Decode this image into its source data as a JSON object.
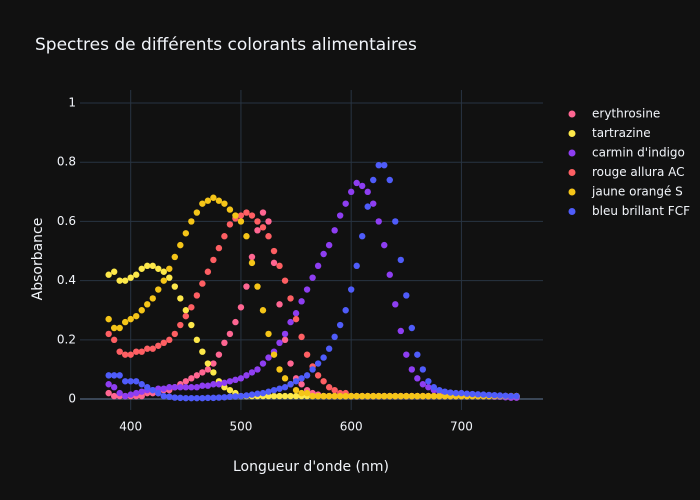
{
  "chart_data": {
    "type": "scatter",
    "title": "Spectres de différents colorants alimentaires",
    "x_label": "Longueur d'onde (nm)",
    "y_label": "Absorbance",
    "xlim": [
      354,
      774
    ],
    "ylim": [
      -0.037,
      1.044
    ],
    "xticks": [
      400,
      500,
      600,
      700
    ],
    "yticks": [
      0,
      0.2,
      0.4,
      0.6,
      0.8,
      1
    ],
    "grid": true,
    "x": [
      380,
      385,
      390,
      395,
      400,
      405,
      410,
      415,
      420,
      425,
      430,
      435,
      440,
      445,
      450,
      455,
      460,
      465,
      470,
      475,
      480,
      485,
      490,
      495,
      500,
      505,
      510,
      515,
      520,
      525,
      530,
      535,
      540,
      545,
      550,
      555,
      560,
      565,
      570,
      575,
      580,
      585,
      590,
      595,
      600,
      605,
      610,
      615,
      620,
      625,
      630,
      635,
      640,
      645,
      650,
      655,
      660,
      665,
      670,
      675,
      680,
      685,
      690,
      695,
      700,
      705,
      710,
      715,
      720,
      725,
      730,
      735,
      740,
      745,
      750
    ],
    "series": [
      {
        "name": "erythrosine",
        "color": "#ff6692",
        "values": [
          0.02,
          0.01,
          0.01,
          0.01,
          0.01,
          0.01,
          0.01,
          0.02,
          0.02,
          0.02,
          0.03,
          0.03,
          0.04,
          0.05,
          0.06,
          0.07,
          0.08,
          0.09,
          0.1,
          0.12,
          0.15,
          0.19,
          0.22,
          0.26,
          0.31,
          0.38,
          0.48,
          0.57,
          0.63,
          0.6,
          0.46,
          0.32,
          0.2,
          0.12,
          0.07,
          0.05,
          0.03,
          0.02,
          0.015,
          0.01,
          0.01,
          0.01,
          0.01,
          0.01,
          0.01,
          0.01,
          0.01,
          0.01,
          0.01,
          0.01,
          0.01,
          0.01,
          0.01,
          0.01,
          0.01,
          0.01,
          0.01,
          0.01,
          0.01,
          0.01,
          0.01,
          0.01,
          0.01,
          0.01,
          0.01,
          0.01,
          0.01,
          0.01,
          0.01,
          0.01,
          0.01,
          0.01,
          0.01,
          0.005,
          0.005
        ]
      },
      {
        "name": "tartrazine",
        "color": "#fde84a",
        "values": [
          0.42,
          0.43,
          0.4,
          0.4,
          0.41,
          0.42,
          0.44,
          0.45,
          0.45,
          0.44,
          0.43,
          0.41,
          0.38,
          0.34,
          0.3,
          0.25,
          0.2,
          0.16,
          0.12,
          0.09,
          0.06,
          0.04,
          0.03,
          0.02,
          0.01,
          0.01,
          0.01,
          0.01,
          0.01,
          0.01,
          0.01,
          0.01,
          0.01,
          0.01,
          0.01,
          0.01,
          0.01,
          0.01,
          0.01,
          0.01,
          0.01,
          0.01,
          0.01,
          0.01,
          0.01,
          0.01,
          0.01,
          0.01,
          0.01,
          0.01,
          0.01,
          0.01,
          0.01,
          0.01,
          0.01,
          0.01,
          0.01,
          0.01,
          0.01,
          0.01,
          0.01,
          0.01,
          0.01,
          0.01,
          0.01,
          0.01,
          0.01,
          0.01,
          0.01,
          0.01,
          0.01,
          0.01,
          0.01,
          0.01,
          0.01
        ]
      },
      {
        "name": "carmin d'indigo",
        "color": "#8e3ef2",
        "values": [
          0.05,
          0.04,
          0.02,
          0.01,
          0.015,
          0.02,
          0.025,
          0.03,
          0.03,
          0.035,
          0.035,
          0.04,
          0.04,
          0.04,
          0.04,
          0.04,
          0.04,
          0.045,
          0.045,
          0.05,
          0.05,
          0.055,
          0.06,
          0.065,
          0.07,
          0.08,
          0.09,
          0.1,
          0.12,
          0.14,
          0.16,
          0.19,
          0.22,
          0.26,
          0.29,
          0.33,
          0.37,
          0.41,
          0.45,
          0.49,
          0.52,
          0.57,
          0.62,
          0.66,
          0.7,
          0.73,
          0.72,
          0.7,
          0.66,
          0.6,
          0.52,
          0.42,
          0.32,
          0.23,
          0.15,
          0.1,
          0.07,
          0.05,
          0.04,
          0.03,
          0.025,
          0.02,
          0.02,
          0.018,
          0.015,
          0.014,
          0.013,
          0.012,
          0.01,
          0.01,
          0.008,
          0.008,
          0.006,
          0.005,
          0.005
        ]
      },
      {
        "name": "rouge allura AC",
        "color": "#fe5f63",
        "values": [
          0.22,
          0.2,
          0.16,
          0.15,
          0.15,
          0.16,
          0.16,
          0.17,
          0.17,
          0.18,
          0.19,
          0.2,
          0.22,
          0.25,
          0.28,
          0.31,
          0.35,
          0.39,
          0.43,
          0.47,
          0.51,
          0.55,
          0.59,
          0.61,
          0.62,
          0.63,
          0.62,
          0.6,
          0.58,
          0.55,
          0.5,
          0.45,
          0.4,
          0.34,
          0.27,
          0.21,
          0.15,
          0.11,
          0.08,
          0.06,
          0.04,
          0.03,
          0.02,
          0.02,
          0.01,
          0.01,
          0.01,
          0.01,
          0.01,
          0.01,
          0.01,
          0.01,
          0.01,
          0.01,
          0.01,
          0.01,
          0.01,
          0.01,
          0.01,
          0.01,
          0.01,
          0.01,
          0.01,
          0.01,
          0.01,
          0.01,
          0.01,
          0.01,
          0.01,
          0.01,
          0.01,
          0.01,
          0.01,
          0.01,
          0.01
        ]
      },
      {
        "name": "jaune orangé S",
        "color": "#f5c518",
        "values": [
          0.27,
          0.24,
          0.24,
          0.26,
          0.27,
          0.28,
          0.3,
          0.32,
          0.34,
          0.37,
          0.4,
          0.44,
          0.48,
          0.52,
          0.56,
          0.6,
          0.63,
          0.66,
          0.67,
          0.68,
          0.67,
          0.66,
          0.64,
          0.62,
          0.6,
          0.55,
          0.46,
          0.38,
          0.3,
          0.22,
          0.15,
          0.1,
          0.07,
          0.05,
          0.03,
          0.02,
          0.02,
          0.01,
          0.01,
          0.01,
          0.01,
          0.01,
          0.01,
          0.01,
          0.01,
          0.01,
          0.01,
          0.01,
          0.01,
          0.01,
          0.01,
          0.01,
          0.01,
          0.01,
          0.01,
          0.01,
          0.01,
          0.01,
          0.01,
          0.01,
          0.01,
          0.01,
          0.01,
          0.01,
          0.01,
          0.01,
          0.01,
          0.01,
          0.01,
          0.01,
          0.01,
          0.01,
          0.01,
          0.01,
          0.01
        ]
      },
      {
        "name": "bleu brillant FCF",
        "color": "#4f5cfa",
        "values": [
          0.08,
          0.08,
          0.08,
          0.06,
          0.06,
          0.06,
          0.05,
          0.04,
          0.03,
          0.02,
          0.01,
          0.008,
          0.005,
          0.004,
          0.003,
          0.003,
          0.003,
          0.003,
          0.004,
          0.004,
          0.005,
          0.006,
          0.008,
          0.009,
          0.01,
          0.012,
          0.015,
          0.018,
          0.02,
          0.025,
          0.03,
          0.035,
          0.04,
          0.05,
          0.06,
          0.07,
          0.08,
          0.1,
          0.12,
          0.14,
          0.17,
          0.21,
          0.25,
          0.3,
          0.37,
          0.45,
          0.55,
          0.65,
          0.74,
          0.79,
          0.79,
          0.74,
          0.6,
          0.47,
          0.35,
          0.24,
          0.15,
          0.1,
          0.06,
          0.04,
          0.03,
          0.025,
          0.022,
          0.02,
          0.02,
          0.018,
          0.017,
          0.016,
          0.015,
          0.014,
          0.013,
          0.012,
          0.011,
          0.01,
          0.01
        ]
      }
    ]
  }
}
